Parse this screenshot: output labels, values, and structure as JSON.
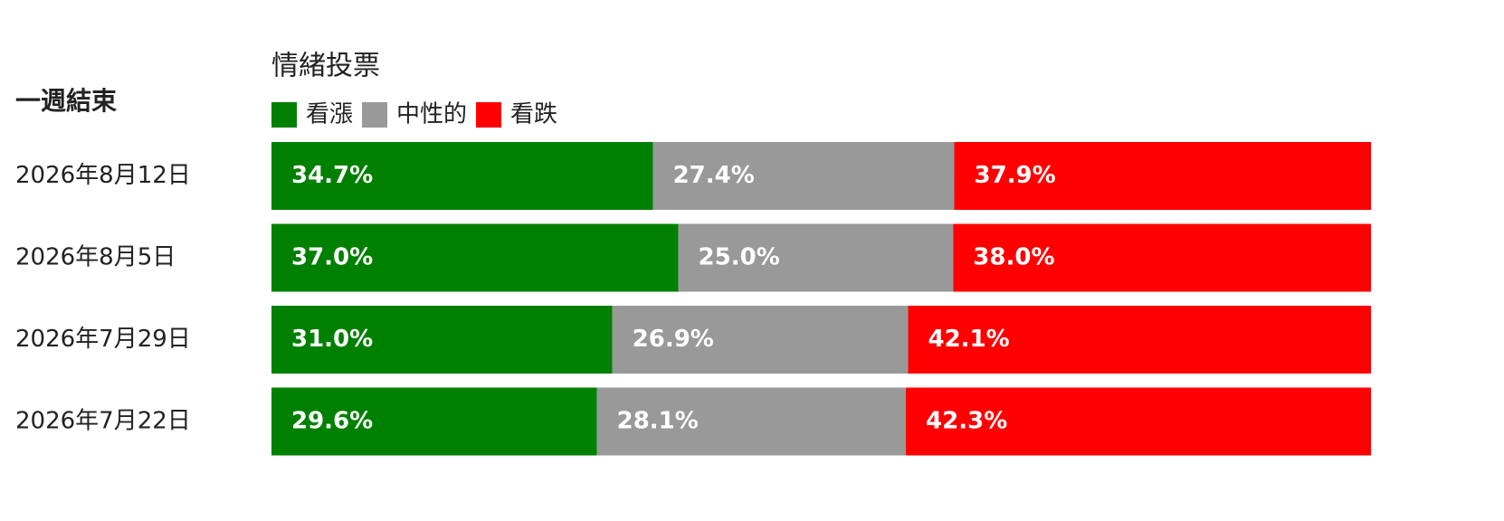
{
  "chart_data": {
    "type": "bar",
    "orientation": "horizontal",
    "stacked": true,
    "title": "情緒投票",
    "category_header": "一週結束",
    "categories": [
      "2026年8月12日",
      "2026年8月5日",
      "2026年7月29日",
      "2026年7月22日"
    ],
    "series": [
      {
        "name": "看漲",
        "color": "#008000",
        "values": [
          34.7,
          37.0,
          31.0,
          29.6
        ],
        "value_labels": [
          "34.7%",
          "37.0%",
          "31.0%",
          "29.6%"
        ]
      },
      {
        "name": "中性的",
        "color": "#999999",
        "values": [
          27.4,
          25.0,
          26.9,
          28.1
        ],
        "value_labels": [
          "27.4%",
          "25.0%",
          "26.9%",
          "28.1%"
        ]
      },
      {
        "name": "看跌",
        "color": "#ff0000",
        "values": [
          37.9,
          38.0,
          42.1,
          42.3
        ],
        "value_labels": [
          "37.9%",
          "38.0%",
          "42.1%",
          "42.3%"
        ]
      }
    ],
    "xlim": [
      0,
      100
    ]
  }
}
